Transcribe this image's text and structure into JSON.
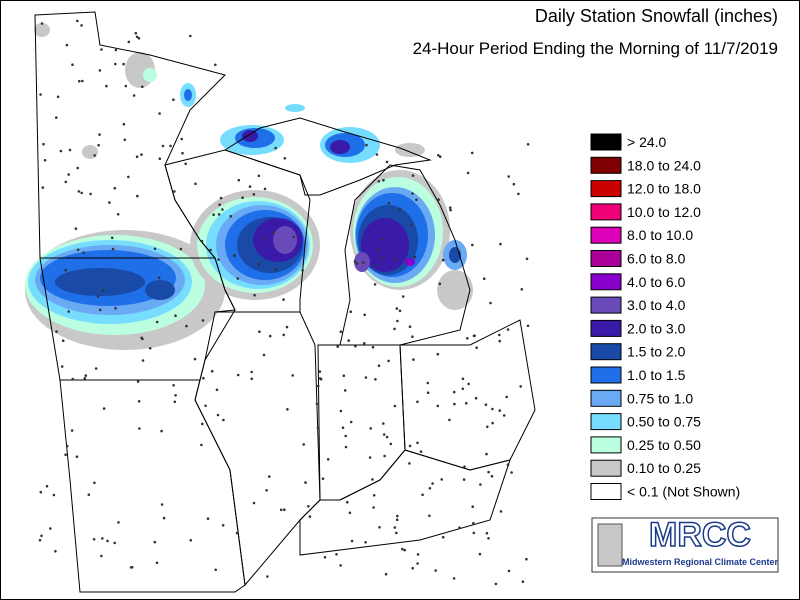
{
  "title": "Daily Station Snowfall (inches)",
  "subtitle": "24-Hour Period Ending the Morning of 11/7/2019",
  "legend": [
    {
      "label": "> 24.0",
      "color": "#000000"
    },
    {
      "label": "18.0 to 24.0",
      "color": "#7f0000"
    },
    {
      "label": "12.0 to 18.0",
      "color": "#cc0000"
    },
    {
      "label": "10.0 to 12.0",
      "color": "#ee0077"
    },
    {
      "label": "8.0 to 10.0",
      "color": "#dd00bb"
    },
    {
      "label": "6.0 to 8.0",
      "color": "#aa0099"
    },
    {
      "label": "4.0 to 6.0",
      "color": "#8800cc"
    },
    {
      "label": "3.0 to 4.0",
      "color": "#6a4ab8"
    },
    {
      "label": "2.0 to 3.0",
      "color": "#3a1aa8"
    },
    {
      "label": "1.5 to 2.0",
      "color": "#1a4aa8"
    },
    {
      "label": "1.0 to 1.5",
      "color": "#1f6fe8"
    },
    {
      "label": "0.75 to 1.0",
      "color": "#6aaaf5"
    },
    {
      "label": "0.50 to 0.75",
      "color": "#77ddff"
    },
    {
      "label": "0.25 to 0.50",
      "color": "#bbffe0"
    },
    {
      "label": "0.10 to 0.25",
      "color": "#c8c8c8"
    },
    {
      "label": "< 0.1 (Not Shown)",
      "color": "#ffffff"
    }
  ],
  "logo": {
    "name": "MRCC",
    "full_name": "Midwestern Regional Climate Center"
  }
}
